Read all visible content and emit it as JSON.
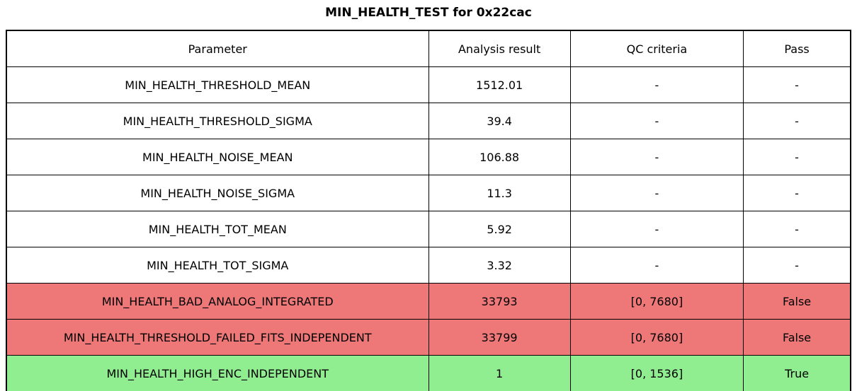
{
  "chart_data": {
    "type": "table",
    "title": "MIN_HEALTH_TEST for 0x22cac",
    "columns": [
      "Parameter",
      "Analysis result",
      "QC criteria",
      "Pass"
    ],
    "rows": [
      {
        "parameter": "MIN_HEALTH_THRESHOLD_MEAN",
        "result": "1512.01",
        "qc": "-",
        "pass": "-",
        "status": "neutral"
      },
      {
        "parameter": "MIN_HEALTH_THRESHOLD_SIGMA",
        "result": "39.4",
        "qc": "-",
        "pass": "-",
        "status": "neutral"
      },
      {
        "parameter": "MIN_HEALTH_NOISE_MEAN",
        "result": "106.88",
        "qc": "-",
        "pass": "-",
        "status": "neutral"
      },
      {
        "parameter": "MIN_HEALTH_NOISE_SIGMA",
        "result": "11.3",
        "qc": "-",
        "pass": "-",
        "status": "neutral"
      },
      {
        "parameter": "MIN_HEALTH_TOT_MEAN",
        "result": "5.92",
        "qc": "-",
        "pass": "-",
        "status": "neutral"
      },
      {
        "parameter": "MIN_HEALTH_TOT_SIGMA",
        "result": "3.32",
        "qc": "-",
        "pass": "-",
        "status": "neutral"
      },
      {
        "parameter": "MIN_HEALTH_BAD_ANALOG_INTEGRATED",
        "result": "33793",
        "qc": "[0, 7680]",
        "pass": "False",
        "status": "fail"
      },
      {
        "parameter": "MIN_HEALTH_THRESHOLD_FAILED_FITS_INDEPENDENT",
        "result": "33799",
        "qc": "[0, 7680]",
        "pass": "False",
        "status": "fail"
      },
      {
        "parameter": "MIN_HEALTH_HIGH_ENC_INDEPENDENT",
        "result": "1",
        "qc": "[0, 1536]",
        "pass": "True",
        "status": "pass"
      }
    ],
    "status_colors": {
      "neutral": "#ffffff",
      "fail": "#ee7777",
      "pass": "#90ee90"
    },
    "layout": {
      "grid": "on",
      "header_bg": "#ffffff",
      "border_color": "#000000"
    }
  }
}
